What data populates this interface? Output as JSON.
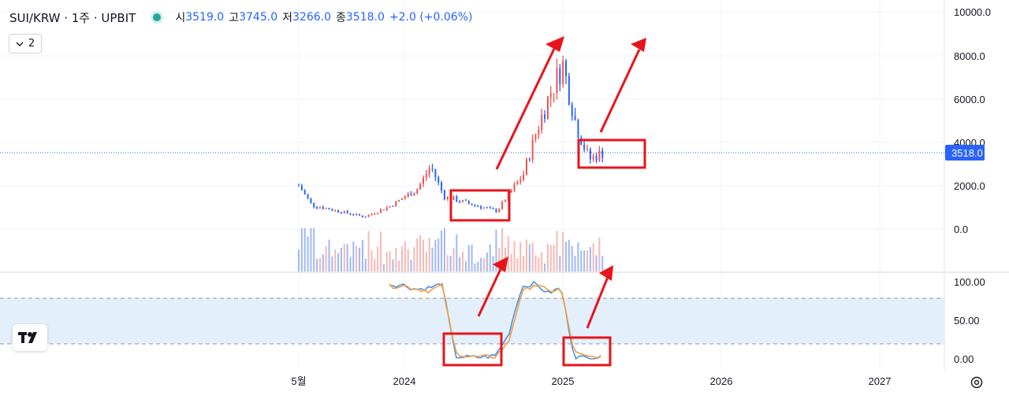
{
  "header": {
    "symbol": "SUI/KRW · 1주 · UPBIT",
    "open_label": "시",
    "open_value": "3519.0",
    "high_label": "고",
    "high_value": "3745.0",
    "low_label": "저",
    "low_value": "3266.0",
    "close_label": "종",
    "close_value": "3518.0",
    "change": "+2.0 (+0.06%)"
  },
  "indicator_toggle": {
    "label": "2",
    "icon": "chevron-down-icon"
  },
  "colors": {
    "up": "#ef5350",
    "down": "#2962ff",
    "stoch_k": "#4a90e2",
    "stoch_d": "#f59c42",
    "annotation": "#e8141c",
    "band": "#e3f0fb"
  },
  "chart_data": [
    {
      "type": "line",
      "name": "SUI/KRW weekly candlestick",
      "y_ticks": [
        "10000.0",
        "8000.0",
        "6000.0",
        "4000.0",
        "2000.0",
        "0.0"
      ],
      "ylim": [
        0,
        10000
      ],
      "x_ticks": [
        "5월",
        "2024",
        "2025",
        "2026",
        "2027"
      ],
      "current_price_label": "3518.0",
      "price_series": [
        {
          "x": "2023-05",
          "y": 2000
        },
        {
          "x": "2023-06",
          "y": 1100
        },
        {
          "x": "2023-08",
          "y": 820
        },
        {
          "x": "2023-10",
          "y": 560
        },
        {
          "x": "2023-12",
          "y": 1080
        },
        {
          "x": "2024-02",
          "y": 1850
        },
        {
          "x": "2024-03",
          "y": 2900
        },
        {
          "x": "2024-04",
          "y": 1500
        },
        {
          "x": "2024-06",
          "y": 1150
        },
        {
          "x": "2024-08",
          "y": 820
        },
        {
          "x": "2024-10",
          "y": 2500
        },
        {
          "x": "2024-11",
          "y": 4500
        },
        {
          "x": "2024-12",
          "y": 6200
        },
        {
          "x": "2025-01",
          "y": 7600
        },
        {
          "x": "2025-02",
          "y": 4800
        },
        {
          "x": "2025-03",
          "y": 3200
        },
        {
          "x": "2025-04",
          "y": 3518
        }
      ]
    },
    {
      "type": "line",
      "name": "Stochastic RSI",
      "y_ticks": [
        "100.00",
        "50.00",
        "0.00"
      ],
      "ylim": [
        0,
        100
      ],
      "bands": [
        20,
        80
      ],
      "series": [
        {
          "values": [
            96,
            96,
            90,
            92,
            97,
            3,
            2,
            2,
            4,
            30,
            93,
            98,
            85,
            92,
            3,
            1,
            4
          ]
        },
        {
          "values": [
            94,
            95,
            91,
            88,
            95,
            8,
            3,
            2,
            3,
            20,
            85,
            97,
            88,
            90,
            8,
            2,
            3
          ]
        }
      ]
    }
  ]
}
